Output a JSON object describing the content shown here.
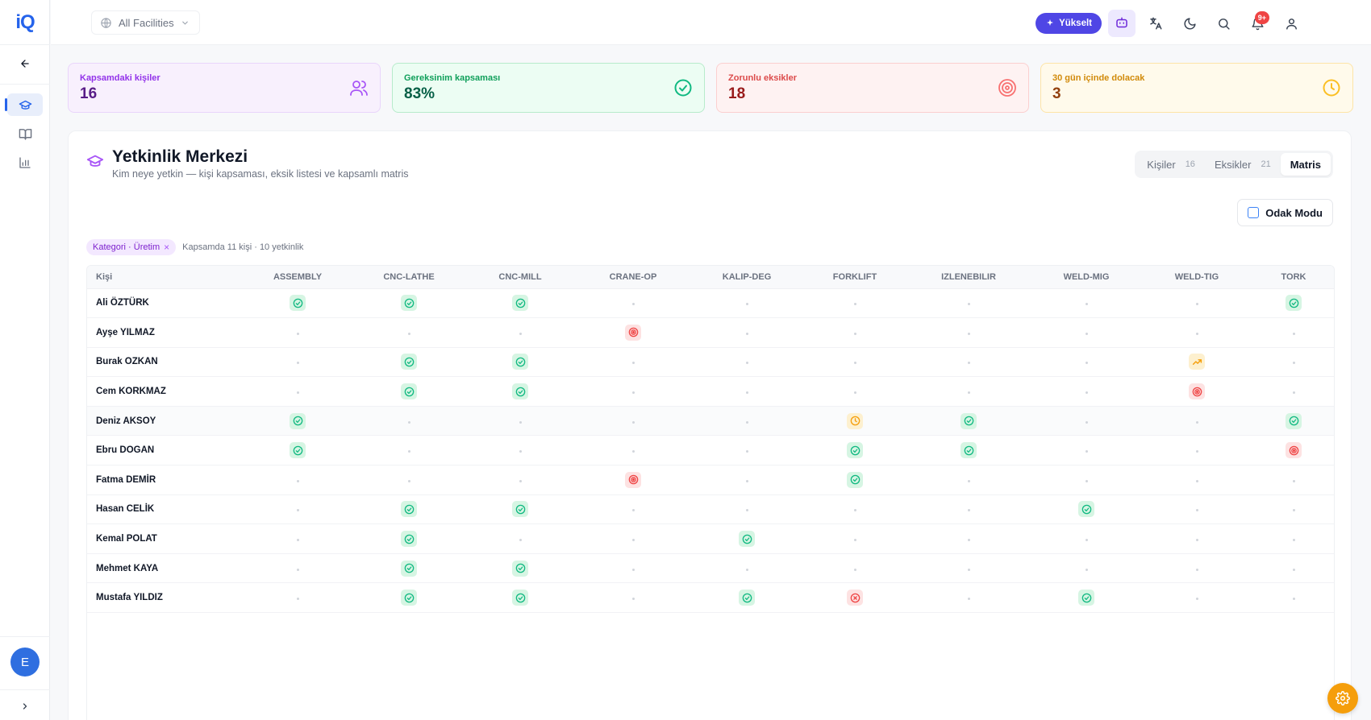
{
  "app": {
    "logo": "iQ"
  },
  "topbar": {
    "facility_label": "All Facilities",
    "upgrade_label": "Yükselt",
    "notification_count": "9+"
  },
  "user": {
    "avatar_initial": "E"
  },
  "stats": [
    {
      "label": "Kapsamdaki kişiler",
      "value": "16",
      "icon": "users-icon"
    },
    {
      "label": "Gereksinim kapsaması",
      "value": "83%",
      "icon": "check-circle-icon"
    },
    {
      "label": "Zorunlu eksikler",
      "value": "18",
      "icon": "target-icon"
    },
    {
      "label": "30 gün içinde dolacak",
      "value": "3",
      "icon": "clock-icon"
    }
  ],
  "panel": {
    "title": "Yetkinlik Merkezi",
    "subtitle": "Kim neye yetkin — kişi kapsaması, eksik listesi ve kapsamlı matris",
    "tabs": [
      {
        "label": "Kişiler",
        "count": "16"
      },
      {
        "label": "Eksikler",
        "count": "21"
      },
      {
        "label": "Matris",
        "count": ""
      }
    ],
    "focus_mode_label": "Odak Modu",
    "filter_chip": "Kategori · Üretim",
    "filter_meta": "Kapsamda 11 kişi · 10 yetkinlik"
  },
  "matrix": {
    "person_header": "Kişi",
    "columns": [
      "ASSEMBLY",
      "CNC-LATHE",
      "CNC-MILL",
      "CRANE-OP",
      "KALIP-DEG",
      "FORKLIFT",
      "IZLENEBILIR",
      "WELD-MIG",
      "WELD-TIG",
      "TORK"
    ],
    "rows": [
      {
        "name": "Ali ÖZTÜRK",
        "cells": [
          "ok",
          "ok",
          "ok",
          "",
          "",
          "",
          "",
          "",
          "",
          "ok"
        ]
      },
      {
        "name": "Ayşe YILMAZ",
        "cells": [
          "",
          "",
          "",
          "gap",
          "",
          "",
          "",
          "",
          "",
          ""
        ]
      },
      {
        "name": "Burak OZKAN",
        "cells": [
          "",
          "ok",
          "ok",
          "",
          "",
          "",
          "",
          "",
          "trend",
          ""
        ]
      },
      {
        "name": "Cem KORKMAZ",
        "cells": [
          "",
          "ok",
          "ok",
          "",
          "",
          "",
          "",
          "",
          "gap",
          ""
        ]
      },
      {
        "name": "Deniz AKSOY",
        "cells": [
          "ok",
          "",
          "",
          "",
          "",
          "exp",
          "ok",
          "",
          "",
          "ok"
        ]
      },
      {
        "name": "Ebru DOGAN",
        "cells": [
          "ok",
          "",
          "",
          "",
          "",
          "ok",
          "ok",
          "",
          "",
          "gap"
        ]
      },
      {
        "name": "Fatma DEMİR",
        "cells": [
          "",
          "",
          "",
          "gap",
          "",
          "ok",
          "",
          "",
          "",
          ""
        ]
      },
      {
        "name": "Hasan CELİK",
        "cells": [
          "",
          "ok",
          "ok",
          "",
          "",
          "",
          "",
          "ok",
          "",
          ""
        ]
      },
      {
        "name": "Kemal POLAT",
        "cells": [
          "",
          "ok",
          "",
          "",
          "ok",
          "",
          "",
          "",
          "",
          ""
        ]
      },
      {
        "name": "Mehmet KAYA",
        "cells": [
          "",
          "ok",
          "ok",
          "",
          "",
          "",
          "",
          "",
          "",
          ""
        ]
      },
      {
        "name": "Mustafa YILDIZ",
        "cells": [
          "",
          "ok",
          "ok",
          "",
          "ok",
          "bad",
          "",
          "ok",
          "",
          ""
        ]
      }
    ],
    "highlighted_row": 4
  },
  "colors": {
    "accent": "#2563eb",
    "ok": "#10b981",
    "gap": "#ef4444",
    "expiring": "#f59e0b"
  }
}
